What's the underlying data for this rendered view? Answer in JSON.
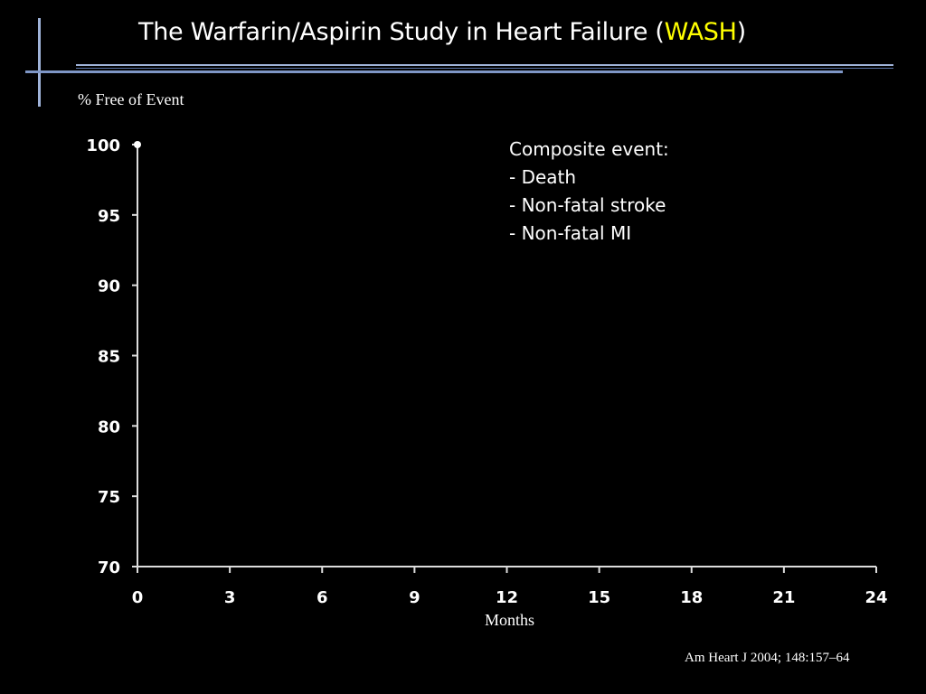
{
  "slide": {
    "title_main": "The Warfarin/Aspirin Study in Heart Failure (",
    "title_accent": "WASH",
    "title_end": ")",
    "title_accent_color": "#ffff00",
    "note_title": "Composite event:",
    "note_items": [
      "- Death",
      "- Non-fatal stroke",
      "- Non-fatal MI"
    ],
    "citation": "Am Heart J 2004; 148:157–64"
  },
  "chart_data": {
    "type": "line",
    "ylabel": "% Free of Event",
    "xlabel": "Months",
    "xlim": [
      0,
      24
    ],
    "ylim": [
      70,
      100
    ],
    "x_ticks": [
      "0",
      "3",
      "6",
      "9",
      "12",
      "15",
      "18",
      "21",
      "24"
    ],
    "y_ticks": [
      "100",
      "95",
      "90",
      "85",
      "80",
      "75",
      "70"
    ],
    "grid": false,
    "series": []
  }
}
